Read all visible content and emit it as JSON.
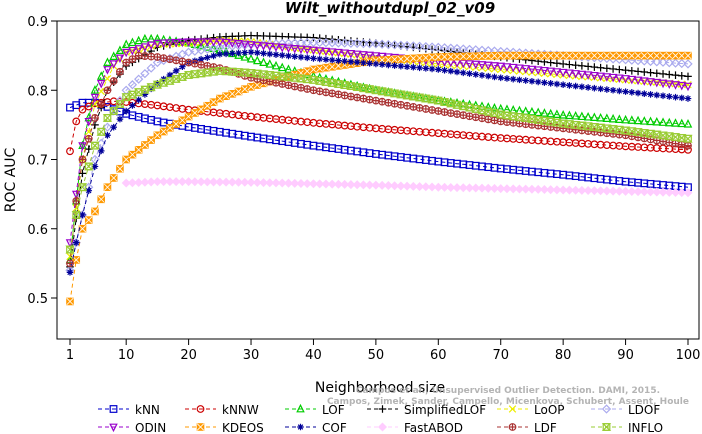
{
  "watermark": {
    "line1": "Campos et al., Unsupervised Outlier Detection. DAMI, 2015.",
    "line2": "Campos, Zimek, Sander, Campello, Micenkova, Schubert, Assent, Houle"
  },
  "chart_data": {
    "type": "line",
    "title": "Wilt_withoutdupl_02_v09",
    "xlabel": "Neighborhood size",
    "ylabel": "ROC AUC",
    "xlim": [
      1,
      100
    ],
    "ylim": [
      0.47,
      0.9
    ],
    "x_ticks": [
      1,
      10,
      20,
      30,
      40,
      50,
      60,
      70,
      80,
      90,
      100
    ],
    "y_ticks": [
      0.5,
      0.6,
      0.7,
      0.8,
      0.9
    ],
    "grid": false,
    "legend_position": "bottom",
    "series": [
      {
        "name": "kNN",
        "color": "#0000cc",
        "marker": "square",
        "points": [
          [
            1,
            0.775
          ],
          [
            3,
            0.782
          ],
          [
            5,
            0.782
          ],
          [
            7,
            0.776
          ],
          [
            10,
            0.766
          ],
          [
            15,
            0.755
          ],
          [
            20,
            0.747
          ],
          [
            25,
            0.74
          ],
          [
            30,
            0.733
          ],
          [
            40,
            0.72
          ],
          [
            50,
            0.708
          ],
          [
            60,
            0.697
          ],
          [
            70,
            0.687
          ],
          [
            80,
            0.678
          ],
          [
            90,
            0.668
          ],
          [
            100,
            0.66
          ]
        ]
      },
      {
        "name": "kNNW",
        "color": "#cc0000",
        "marker": "circle",
        "points": [
          [
            1,
            0.712
          ],
          [
            2,
            0.755
          ],
          [
            3,
            0.772
          ],
          [
            5,
            0.781
          ],
          [
            8,
            0.784
          ],
          [
            10,
            0.783
          ],
          [
            15,
            0.778
          ],
          [
            20,
            0.772
          ],
          [
            30,
            0.762
          ],
          [
            40,
            0.753
          ],
          [
            50,
            0.745
          ],
          [
            60,
            0.738
          ],
          [
            70,
            0.731
          ],
          [
            80,
            0.725
          ],
          [
            90,
            0.719
          ],
          [
            100,
            0.714
          ]
        ]
      },
      {
        "name": "LOF",
        "color": "#00cc00",
        "marker": "triangle-up",
        "points": [
          [
            1,
            0.555
          ],
          [
            2,
            0.64
          ],
          [
            3,
            0.72
          ],
          [
            5,
            0.8
          ],
          [
            7,
            0.84
          ],
          [
            10,
            0.866
          ],
          [
            13,
            0.874
          ],
          [
            15,
            0.874
          ],
          [
            20,
            0.868
          ],
          [
            25,
            0.858
          ],
          [
            30,
            0.845
          ],
          [
            40,
            0.82
          ],
          [
            50,
            0.8
          ],
          [
            60,
            0.785
          ],
          [
            70,
            0.773
          ],
          [
            80,
            0.764
          ],
          [
            90,
            0.757
          ],
          [
            100,
            0.751
          ]
        ]
      },
      {
        "name": "SimplifiedLOF",
        "color": "#000000",
        "marker": "plus",
        "points": [
          [
            1,
            0.545
          ],
          [
            2,
            0.615
          ],
          [
            3,
            0.68
          ],
          [
            5,
            0.75
          ],
          [
            7,
            0.8
          ],
          [
            10,
            0.835
          ],
          [
            15,
            0.862
          ],
          [
            20,
            0.872
          ],
          [
            25,
            0.877
          ],
          [
            30,
            0.879
          ],
          [
            40,
            0.876
          ],
          [
            50,
            0.868
          ],
          [
            60,
            0.858
          ],
          [
            70,
            0.848
          ],
          [
            80,
            0.838
          ],
          [
            90,
            0.829
          ],
          [
            100,
            0.82
          ]
        ]
      },
      {
        "name": "LoOP",
        "color": "#eeee00",
        "marker": "x",
        "points": [
          [
            1,
            0.56
          ],
          [
            2,
            0.63
          ],
          [
            3,
            0.7
          ],
          [
            5,
            0.78
          ],
          [
            8,
            0.835
          ],
          [
            10,
            0.855
          ],
          [
            15,
            0.866
          ],
          [
            20,
            0.868
          ],
          [
            25,
            0.872
          ],
          [
            30,
            0.87
          ],
          [
            40,
            0.858
          ],
          [
            50,
            0.848
          ],
          [
            60,
            0.838
          ],
          [
            70,
            0.83
          ],
          [
            80,
            0.822
          ],
          [
            90,
            0.815
          ],
          [
            100,
            0.808
          ]
        ]
      },
      {
        "name": "LDOF",
        "color": "#aaaaee",
        "marker": "diamond",
        "points": [
          [
            1,
            0.54
          ],
          [
            2,
            0.58
          ],
          [
            3,
            0.62
          ],
          [
            5,
            0.7
          ],
          [
            8,
            0.77
          ],
          [
            10,
            0.8
          ],
          [
            15,
            0.84
          ],
          [
            20,
            0.855
          ],
          [
            25,
            0.862
          ],
          [
            30,
            0.866
          ],
          [
            40,
            0.869
          ],
          [
            50,
            0.867
          ],
          [
            60,
            0.862
          ],
          [
            70,
            0.856
          ],
          [
            80,
            0.85
          ],
          [
            90,
            0.844
          ],
          [
            100,
            0.838
          ]
        ]
      },
      {
        "name": "ODIN",
        "color": "#9900cc",
        "marker": "triangle-down",
        "points": [
          [
            1,
            0.58
          ],
          [
            2,
            0.65
          ],
          [
            3,
            0.72
          ],
          [
            5,
            0.79
          ],
          [
            7,
            0.83
          ],
          [
            10,
            0.855
          ],
          [
            15,
            0.868
          ],
          [
            20,
            0.87
          ],
          [
            25,
            0.87
          ],
          [
            30,
            0.866
          ],
          [
            40,
            0.858
          ],
          [
            50,
            0.85
          ],
          [
            60,
            0.842
          ],
          [
            70,
            0.835
          ],
          [
            80,
            0.826
          ],
          [
            90,
            0.817
          ],
          [
            100,
            0.806
          ]
        ]
      },
      {
        "name": "KDEOS",
        "color": "#ff9900",
        "marker": "square-x",
        "points": [
          [
            1,
            0.495
          ],
          [
            2,
            0.555
          ],
          [
            3,
            0.6
          ],
          [
            5,
            0.625
          ],
          [
            7,
            0.66
          ],
          [
            10,
            0.7
          ],
          [
            15,
            0.735
          ],
          [
            20,
            0.762
          ],
          [
            25,
            0.788
          ],
          [
            30,
            0.805
          ],
          [
            40,
            0.83
          ],
          [
            50,
            0.843
          ],
          [
            60,
            0.848
          ],
          [
            70,
            0.85
          ],
          [
            80,
            0.85
          ],
          [
            90,
            0.85
          ],
          [
            100,
            0.85
          ]
        ]
      },
      {
        "name": "COF",
        "color": "#000099",
        "marker": "asterisk",
        "points": [
          [
            1,
            0.537
          ],
          [
            2,
            0.58
          ],
          [
            3,
            0.62
          ],
          [
            5,
            0.69
          ],
          [
            7,
            0.735
          ],
          [
            10,
            0.77
          ],
          [
            15,
            0.81
          ],
          [
            20,
            0.84
          ],
          [
            25,
            0.852
          ],
          [
            30,
            0.855
          ],
          [
            40,
            0.846
          ],
          [
            50,
            0.838
          ],
          [
            60,
            0.83
          ],
          [
            70,
            0.818
          ],
          [
            80,
            0.808
          ],
          [
            90,
            0.798
          ],
          [
            100,
            0.788
          ]
        ]
      },
      {
        "name": "FastABOD",
        "color": "#ffccff",
        "marker": "diamond-filled",
        "points": [
          [
            10,
            0.666
          ],
          [
            15,
            0.668
          ],
          [
            20,
            0.668
          ],
          [
            30,
            0.667
          ],
          [
            40,
            0.665
          ],
          [
            50,
            0.663
          ],
          [
            60,
            0.66
          ],
          [
            70,
            0.658
          ],
          [
            80,
            0.656
          ],
          [
            90,
            0.654
          ],
          [
            100,
            0.652
          ]
        ]
      },
      {
        "name": "LDF",
        "color": "#aa3333",
        "marker": "circle-plus",
        "points": [
          [
            1,
            0.55
          ],
          [
            2,
            0.64
          ],
          [
            3,
            0.7
          ],
          [
            5,
            0.76
          ],
          [
            7,
            0.8
          ],
          [
            10,
            0.84
          ],
          [
            12,
            0.85
          ],
          [
            15,
            0.848
          ],
          [
            20,
            0.84
          ],
          [
            25,
            0.832
          ],
          [
            30,
            0.818
          ],
          [
            40,
            0.8
          ],
          [
            50,
            0.785
          ],
          [
            60,
            0.77
          ],
          [
            70,
            0.755
          ],
          [
            80,
            0.745
          ],
          [
            90,
            0.735
          ],
          [
            100,
            0.72
          ]
        ]
      },
      {
        "name": "INFLO",
        "color": "#99cc33",
        "marker": "hourglass",
        "points": [
          [
            1,
            0.57
          ],
          [
            2,
            0.62
          ],
          [
            3,
            0.66
          ],
          [
            5,
            0.72
          ],
          [
            7,
            0.76
          ],
          [
            10,
            0.79
          ],
          [
            15,
            0.808
          ],
          [
            20,
            0.822
          ],
          [
            25,
            0.828
          ],
          [
            30,
            0.825
          ],
          [
            40,
            0.815
          ],
          [
            50,
            0.8
          ],
          [
            60,
            0.785
          ],
          [
            70,
            0.765
          ],
          [
            80,
            0.752
          ],
          [
            90,
            0.742
          ],
          [
            100,
            0.73
          ]
        ]
      }
    ]
  }
}
